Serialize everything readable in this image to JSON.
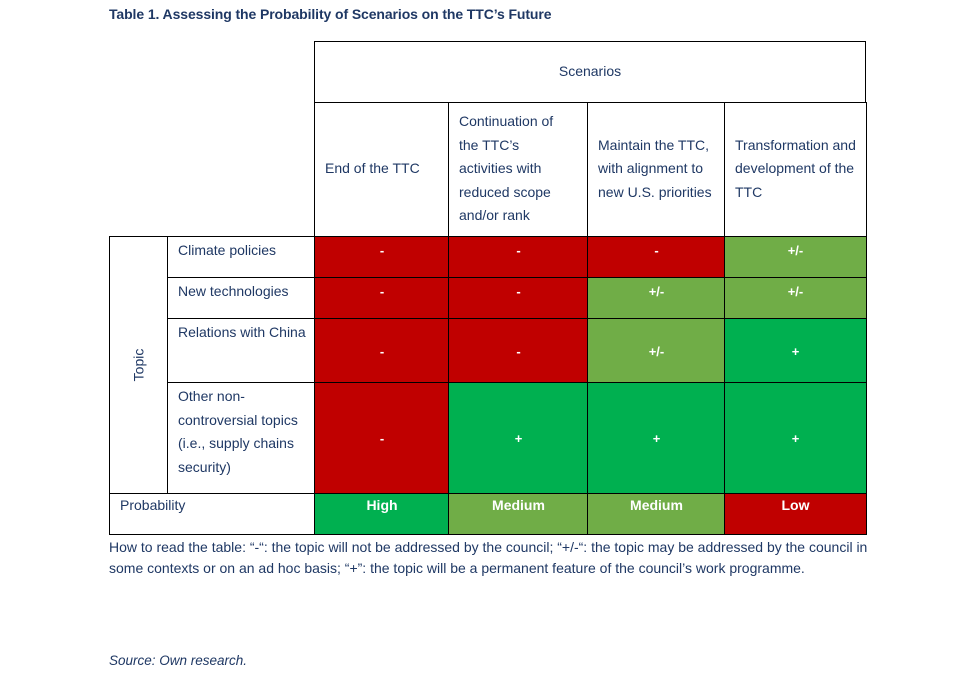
{
  "title": "Table 1. Assessing the Probability of Scenarios on the TTC’s Future",
  "table": {
    "group_header": "Scenarios",
    "row_group_header": "Topic",
    "scenarios": [
      "End of the TTC",
      "Continuation of the TTC’s activities with reduced scope and/or rank",
      "Maintain the TTC, with alignment to new U.S. priorities",
      "Transformation and development of the TTC"
    ],
    "rows": [
      {
        "topic": "Climate policies",
        "values": [
          "-",
          "-",
          "-",
          "+/-"
        ]
      },
      {
        "topic": "New technologies",
        "values": [
          "-",
          "-",
          "+/-",
          "+/-"
        ]
      },
      {
        "topic": "Relations with China",
        "values": [
          "-",
          "-",
          "+/-",
          "+"
        ]
      },
      {
        "topic": "Other non-controversial topics (i.e., supply chains security)",
        "values": [
          "-",
          "+",
          "+",
          "+"
        ]
      }
    ],
    "probability_label": "Probability",
    "probability": [
      "High",
      "Medium",
      "Medium",
      "Low"
    ]
  },
  "colors": {
    "minus": "#C00000",
    "plusminus": "#70AD47",
    "plus": "#00B050",
    "High": "#00B050",
    "Medium": "#70AD47",
    "Low": "#C00000"
  },
  "note": "How to read the table: “-“: the topic will not be addressed by the council; “+/-“: the topic may be addressed by the council in some contexts or on an ad hoc basis; “+”: the topic will be a permanent feature of the council’s work programme.",
  "source": "Source: Own research."
}
